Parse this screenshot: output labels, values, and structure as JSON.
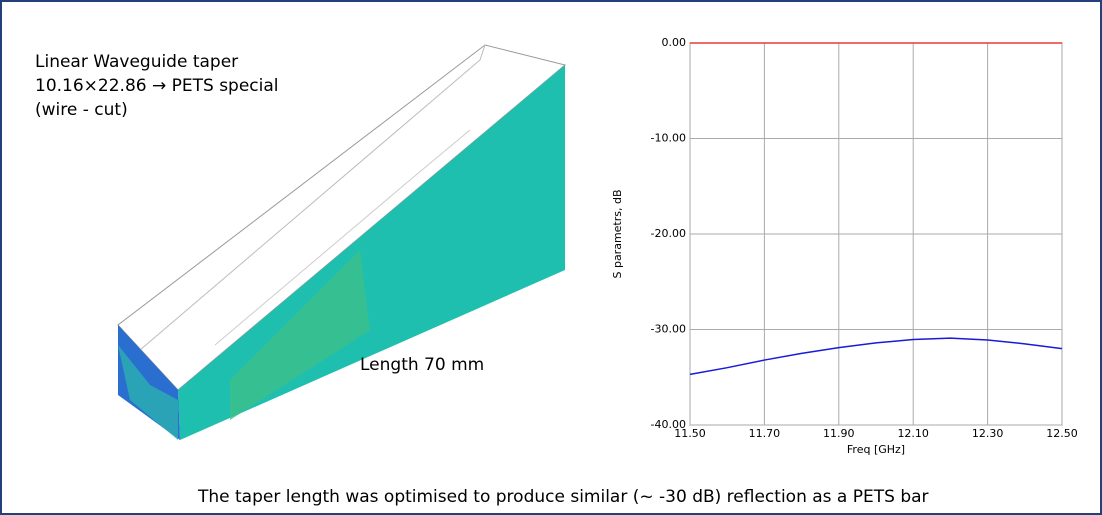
{
  "texts": {
    "heading": [
      "Linear Waveguide taper",
      "10.16×22.86 → PETS special",
      "(wire - cut)"
    ],
    "length_label": "Length 70 mm",
    "caption": "The taper length was optimised to produce similar (~ -30 dB) reflection as a PETS bar"
  },
  "chart_data": {
    "type": "line",
    "x": [
      11.5,
      11.6,
      11.7,
      11.8,
      11.9,
      12.0,
      12.1,
      12.2,
      12.3,
      12.4,
      12.5
    ],
    "series": [
      {
        "color": "#e83a3a",
        "values": [
          0,
          0,
          0,
          0,
          0,
          0,
          0,
          0,
          0,
          0,
          0
        ]
      },
      {
        "color": "#1a1ad8",
        "values": [
          -34.7,
          -34.0,
          -33.2,
          -32.5,
          -31.9,
          -31.4,
          -31.05,
          -30.9,
          -31.1,
          -31.5,
          -32.0
        ]
      }
    ],
    "xlabel": "Freq [GHz]",
    "ylabel": "S parametrs, dB",
    "xlim": [
      11.5,
      12.5
    ],
    "xticks": [
      {
        "value": 11.5,
        "label": "11.50"
      },
      {
        "value": 11.7,
        "label": "11.70"
      },
      {
        "value": 11.9,
        "label": "11.90"
      },
      {
        "value": 12.1,
        "label": "12.10"
      },
      {
        "value": 12.3,
        "label": "12.30"
      },
      {
        "value": 12.5,
        "label": "12.50"
      }
    ],
    "ylim": [
      -40,
      0
    ],
    "yticks": [
      {
        "value": 0,
        "label": "0.00"
      },
      {
        "value": -10,
        "label": "-10.00"
      },
      {
        "value": -20,
        "label": "-20.00"
      },
      {
        "value": -30,
        "label": "-30.00"
      },
      {
        "value": -40,
        "label": "-40.00"
      }
    ],
    "grid": true
  }
}
